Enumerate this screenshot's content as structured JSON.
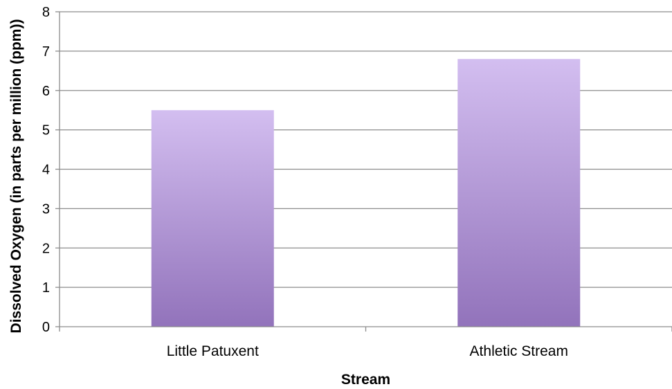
{
  "chart_data": {
    "type": "bar",
    "title": "",
    "xlabel": "Stream",
    "ylabel": "Dissolved Oxygen (in parts per million (ppm))",
    "categories": [
      "Little Patuxent",
      "Athletic Stream"
    ],
    "values": [
      5.5,
      6.8
    ],
    "ylim": [
      0,
      8
    ],
    "yticks": [
      "0",
      "1",
      "2",
      "3",
      "4",
      "5",
      "6",
      "7",
      "8"
    ],
    "grid": true,
    "legend": "none",
    "colors": {
      "bar_top": "#d3bef0",
      "bar_bottom": "#9273bb",
      "grid": "#8c8c8c",
      "axis": "#8c8c8c"
    }
  }
}
